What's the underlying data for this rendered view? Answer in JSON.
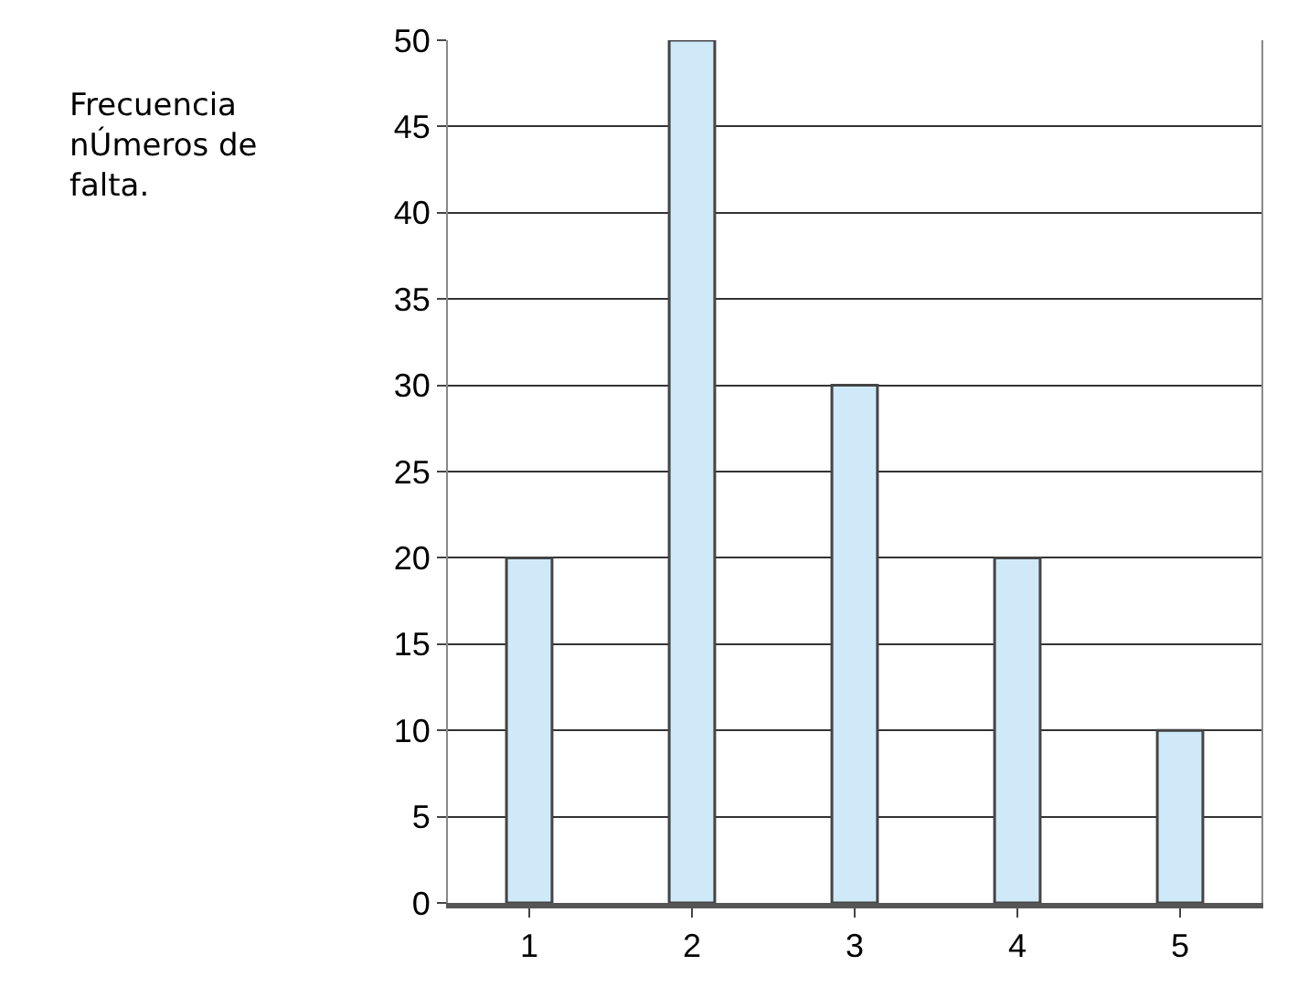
{
  "chart_data": {
    "type": "bar",
    "categories": [
      "1",
      "2",
      "3",
      "4",
      "5"
    ],
    "values": [
      20,
      50,
      30,
      20,
      10
    ],
    "color": "#cfe9f9",
    "ylim": [
      0,
      50
    ],
    "yticks": [
      0,
      5,
      10,
      15,
      20,
      25,
      30,
      35,
      40,
      45,
      50
    ],
    "grid": "y",
    "annotations": [
      "Frecuencia\nnÚmeros de\nfalta."
    ]
  }
}
